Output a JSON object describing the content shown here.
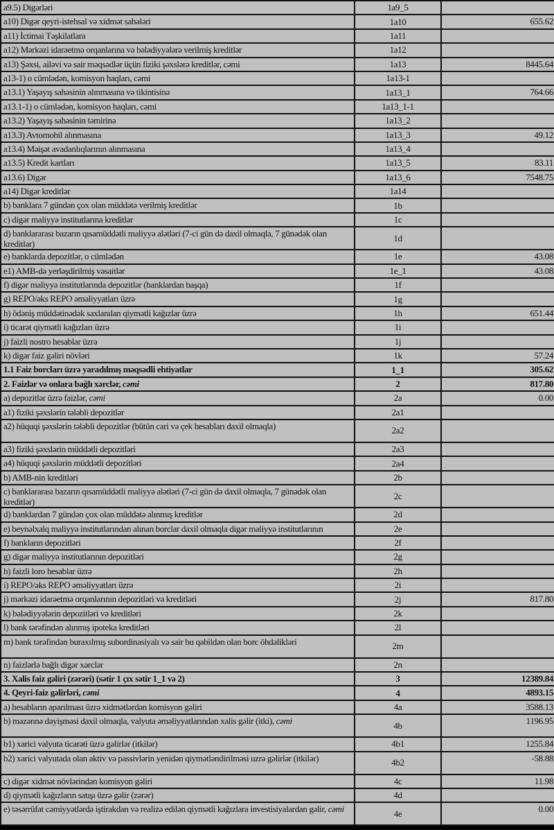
{
  "rows": [
    {
      "label": "a9.5) Digərləri",
      "code": "1a9_5",
      "value": "",
      "level": 3
    },
    {
      "label": "a10) Digər qeyri-istehsal və xidmət sahələri",
      "code": "1a10",
      "value": "655.62",
      "level": 2
    },
    {
      "label": "a11) İctimai Təşkilatlara",
      "code": "1a11",
      "value": "",
      "level": 2
    },
    {
      "label": "a12) Mərkəzi  idarəetmə orqanlarına və bələdiyyələrə verilmiş kreditlər",
      "code": "1a12",
      "value": "",
      "level": 2
    },
    {
      "label": "a13) Şəxsi, ailəvi və sair məqsədlər üçün fiziki şəxslərə kreditlər, cəmi",
      "code": "1a13",
      "value": "8445.64",
      "level": 2
    },
    {
      "label": "a13-1) o cümlədən, komisyon haqları, cəmi",
      "code": "1a13-1",
      "value": "",
      "level": 2
    },
    {
      "label": "a13.1) Yaşayış sahəsinin alınmasına və tikintisinə",
      "code": "1a13_1",
      "value": "764.66",
      "level": 3
    },
    {
      "label": "a13.1-1) o cümlədən, komisyon haqları, cəmi",
      "code": "1a13_1-1",
      "value": "",
      "level": 2
    },
    {
      "label": "a13.2) Yaşayış sahəsinin təmirinə",
      "code": "1a13_2",
      "value": "",
      "level": 3
    },
    {
      "label": "a13.3) Avtomobil alınmasına",
      "code": "1a13_3",
      "value": "49.12",
      "level": 3
    },
    {
      "label": "a13.4) Məişət avadanlıqlarının alınmasına",
      "code": "1a13_4",
      "value": "",
      "level": 3
    },
    {
      "label": "a13.5) Kredit kartları",
      "code": "1a13_5",
      "value": "83.11",
      "level": 3
    },
    {
      "label": "a13.6) Digər",
      "code": "1a13_6",
      "value": "7548.75",
      "level": 3
    },
    {
      "label": "a14) Digər kreditlər",
      "code": "1a14",
      "value": "",
      "level": 2
    },
    {
      "label": "b) banklara 7 gündən çox olan müddətə verilmiş kreditlər",
      "code": "1b",
      "value": "",
      "level": 1
    },
    {
      "label": "c) digər maliyyə institutlarına kreditlər",
      "code": "1c",
      "value": "",
      "level": 1
    },
    {
      "label": "d) banklararası bazarın qısamüddətli maliyyə alətləri (7-ci gün də daxil olmaqla, 7 günədək olan kreditlər)",
      "code": "1d",
      "value": "",
      "level": 1
    },
    {
      "label": "e) banklarda depozitlər, o cümlədən",
      "code": "1e",
      "value": "43.08",
      "level": 1
    },
    {
      "label": "e1)  AMB-də yerləşdirilmiş vəsaitlər",
      "code": "1e_1",
      "value": "43.08",
      "level": 3
    },
    {
      "label": "f) digər maliyyə institutlarında depozitlər (banklardan başqa)",
      "code": "1f",
      "value": "",
      "level": 1
    },
    {
      "label": "g) REPO/əks REPO əməliyyatları üzrə",
      "code": "1g",
      "value": "",
      "level": 1
    },
    {
      "label": "h) ödəniş müddətinədək saxlanılan qiymətli kağızlar üzrə",
      "code": "1h",
      "value": "651.44",
      "level": 1
    },
    {
      "label": "i) ticarət qiymətli kağızları üzrə",
      "code": "1i",
      "value": "",
      "level": 1
    },
    {
      "label": "j) faizli nostro hesablar üzrə",
      "code": "1j",
      "value": "",
      "level": 1
    },
    {
      "label": "k) digər faiz gəliri növləri",
      "code": "1k",
      "value": "57.24",
      "level": 1
    },
    {
      "label": "1.1 Faiz borcları üzrə yaradılmış məqsədli ehtiyatlar",
      "code": "1_1",
      "value": "305.62",
      "level": 0,
      "bold": true
    },
    {
      "label": "2. Faizlər və onlara bağlı xərclər, ",
      "em": "cəmi",
      "code": "2",
      "value": "817.80",
      "level": 0,
      "bold": true
    },
    {
      "label": "a) depozitlər üzrə faizlər, ",
      "em": "cəmi",
      "code": "2a",
      "value": "0.00",
      "level": 1
    },
    {
      "label": "a1) fiziki şəxslərin tələbli depozitlər",
      "code": "2a1",
      "value": "",
      "level": 3
    },
    {
      "label": "a2) hüquqi şəxslərin tələbli depozitlər (bütün cari və çek hesabları daxil olmaqla)",
      "code": "2a2",
      "value": "",
      "level": 3
    },
    {
      "label": "a3) fiziki şəxslərin müddətli depozitləri",
      "code": "2a3",
      "value": "",
      "level": 3
    },
    {
      "label": "a4) hüquqi şəxslərin müddətli depozitləri",
      "code": "2a4",
      "value": "",
      "level": 3
    },
    {
      "label": "b) AMB-nin kreditləri",
      "code": "2b",
      "value": "",
      "level": 1
    },
    {
      "label": "c) banklararası bazarın qısamüddətli maliyyə alətləri (7-ci gün də daxil olmaqla, 7 günədək olan kreditlər)",
      "code": "2c",
      "value": "",
      "level": 1
    },
    {
      "label": "d) banklardan 7 gündən çox olan müddətə alınmış kreditlər",
      "code": "2d",
      "value": "",
      "level": 1
    },
    {
      "label": "e) beynəlxalq maliyyə institutlarından alınan borclar daxil olmaqla digər maliyyə institutlarının",
      "code": "2e",
      "value": "",
      "level": 1
    },
    {
      "label": "f) bankların depozitləri",
      "code": "2f",
      "value": "",
      "level": 1
    },
    {
      "label": "g) digər maliyyə institutlarının depozitləri",
      "code": "2g",
      "value": "",
      "level": 1
    },
    {
      "label": "h) faizli loro hesablar üzrə",
      "code": "2h",
      "value": "",
      "level": 1
    },
    {
      "label": "i) REPO/əks REPO əməliyyatları üzrə",
      "code": "2i",
      "value": "",
      "level": 1
    },
    {
      "label": "j) mərkəzi idarəetmə orqanlarının depozitləri və kreditləri",
      "code": "2j",
      "value": "817.80",
      "level": 1
    },
    {
      "label": "k) bələdiyyələrin depozitləri və kreditləri",
      "code": "2k",
      "value": "",
      "level": 1
    },
    {
      "label": "l) bank tərəfindən alınmış ipoteka kreditləri",
      "code": "2l",
      "value": "",
      "level": 1
    },
    {
      "label": "m) bank tərəfindən buraxılmış subordinasiyalı və sair bu qəbildən olan borc öhdəlikləri",
      "code": "2m",
      "value": "",
      "level": 1
    },
    {
      "label": "n) faizlərlə bağlı digər xərclər",
      "code": "2n",
      "value": "",
      "level": 1
    },
    {
      "label": "3. Xalis faiz gəliri (zərəri) (sətir 1 çıx sətir 1_1 və 2)",
      "code": "3",
      "value": "12389.84",
      "level": 0,
      "bold": true
    },
    {
      "label": "4. Qeyri-faiz gəlirləri, ",
      "em": "cəmi",
      "code": "4",
      "value": "4893.15",
      "level": 0,
      "bold": true
    },
    {
      "label": "a) hesabların aparılması üzrə xidmətlərdən komisyon gəliri",
      "code": "4a",
      "value": "3588.13",
      "level": 1
    },
    {
      "label": "b) məzənnə dəyişməsi daxil olmaqla, valyuta əməliyyatlarından xalis gəlir (itki), ",
      "em": "cəmi",
      "code": "4b",
      "value": "1196.95",
      "level": 1
    },
    {
      "label": "b1) xarici valyuta ticarəti üzrə gəlirlər (itkilər)",
      "code": "4b1",
      "value": "1255.84",
      "level": 3
    },
    {
      "label": "b2) xarici valyutada olan aktiv və passivlərin yenidən qiymətləndirilməsi uzrə gəlirlər (itkilər)",
      "code": "4b2",
      "value": "-58.88",
      "level": 3
    },
    {
      "label": "c) digər xidmət növlərindən komisyon gəliri",
      "code": "4c",
      "value": "11.98",
      "level": 1
    },
    {
      "label": "d) qiymətli kağızların satışı üzrə gəlir (zərər)",
      "code": "4d",
      "value": "",
      "level": 1
    },
    {
      "label": "e) təsərrüfat cəmiyyətlərdə iştirakdan və realizə edilən qiymətli kağızlara investisiyalardan gəlir, ",
      "em": "cəmi",
      "code": "4e",
      "value": "0.00",
      "level": 1
    }
  ]
}
